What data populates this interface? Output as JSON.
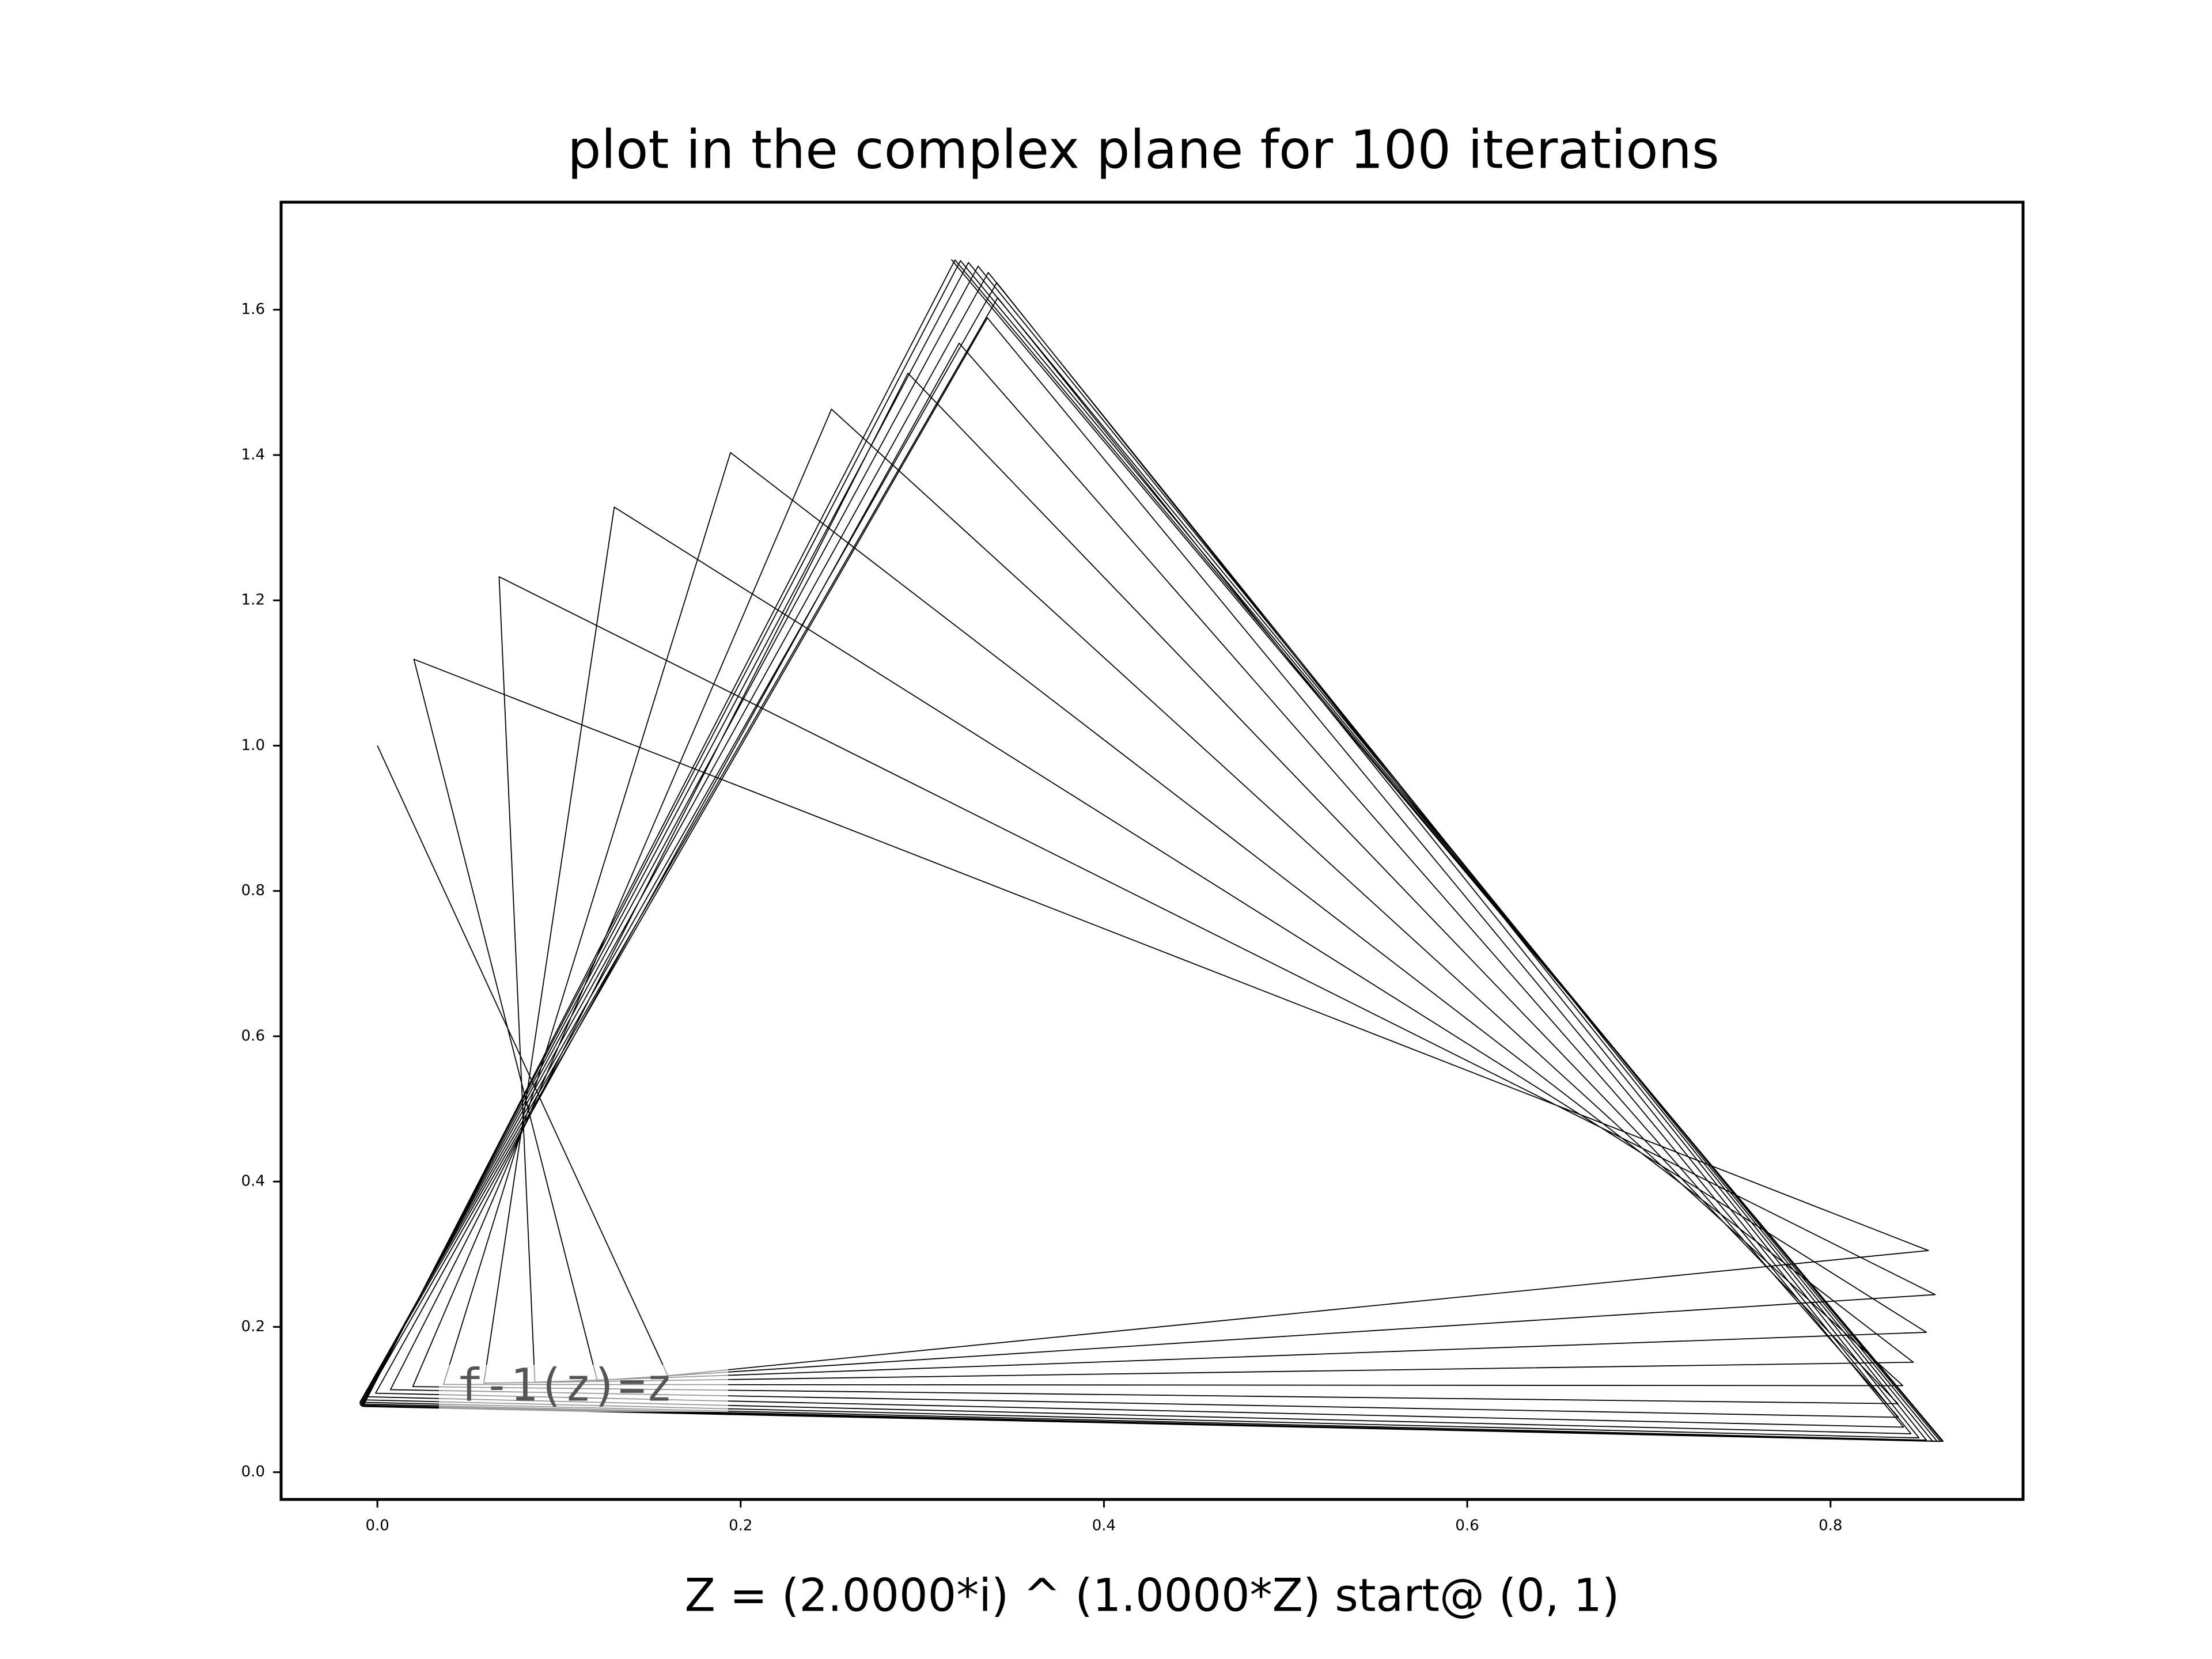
{
  "chart_data": {
    "type": "line",
    "title": "plot in the complex plane for 100 iterations",
    "xlabel": "Z = (2.0000*i) ^ (1.0000*Z)  start@ (0, 1)",
    "annotation": "f-1(z)=z",
    "x": [
      0,
      0.1599,
      0.8539,
      0.0201,
      0.121,
      0.8576,
      0.067,
      0.0867,
      0.8528,
      0.1304,
      0.0586,
      0.8456,
      0.1944,
      0.0364,
      0.8398,
      0.25,
      0.0195,
      0.8371,
      0.2921,
      0.0072,
      0.8374,
      0.3203,
      -0.001,
      0.8402,
      0.3358,
      -0.006,
      0.8443,
      0.3415,
      -0.0086,
      0.8487,
      0.341,
      -0.0096,
      0.8528,
      0.3363,
      -0.0096,
      0.8561,
      0.3307,
      -0.0092,
      0.8587,
      0.3254,
      -0.0087,
      0.8605,
      0.321,
      -0.0083,
      0.8615,
      0.318,
      -0.008,
      0.862,
      0.316
    ],
    "series": [
      {
        "color": "#000000",
        "values": [
          1,
          0.1328,
          0.3051,
          1.1189,
          0.1263,
          0.2444,
          1.2325,
          0.1238,
          0.1925,
          1.3283,
          0.1226,
          0.1513,
          1.4034,
          0.1208,
          0.1191,
          1.4631,
          0.1178,
          0.0943,
          1.5126,
          0.1136,
          0.0756,
          1.5539,
          0.1087,
          0.062,
          1.5889,
          0.1038,
          0.0529,
          1.6165,
          0.0996,
          0.0472,
          1.6371,
          0.0963,
          0.0441,
          1.6512,
          0.0939,
          0.0428,
          1.6599,
          0.0922,
          0.0424,
          1.665,
          0.0913,
          0.0424,
          1.6675,
          0.0908,
          0.0425,
          1.6685,
          0.0905,
          0.0426,
          1.669
        ]
      }
    ],
    "xlim": [
      -0.053,
      0.906
    ],
    "ylim": [
      -0.0375,
      1.748
    ],
    "xticks": [
      {
        "value": 0,
        "label": "0.0"
      },
      {
        "value": 0.2,
        "label": "0.2"
      },
      {
        "value": 0.4,
        "label": "0.4"
      },
      {
        "value": 0.6,
        "label": "0.6"
      },
      {
        "value": 0.8,
        "label": "0.8"
      }
    ],
    "yticks": [
      {
        "value": 0,
        "label": "0.0"
      },
      {
        "value": 0.2,
        "label": "0.2"
      },
      {
        "value": 0.4,
        "label": "0.4"
      },
      {
        "value": 0.6,
        "label": "0.6"
      },
      {
        "value": 0.8,
        "label": "0.8"
      },
      {
        "value": 1,
        "label": "1.0"
      },
      {
        "value": 1.2,
        "label": "1.2"
      },
      {
        "value": 1.4,
        "label": "1.4"
      },
      {
        "value": 1.6,
        "label": "1.6"
      }
    ],
    "grid": false
  }
}
